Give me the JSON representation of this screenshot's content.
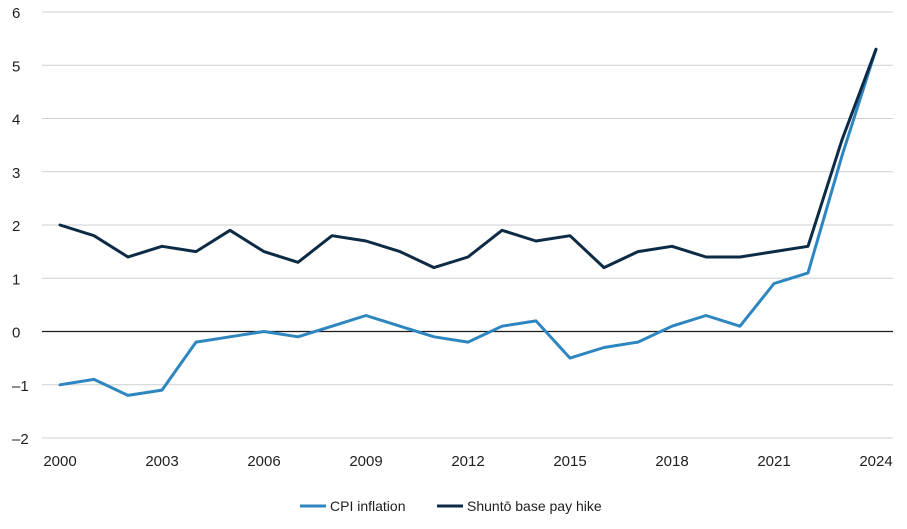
{
  "chart_data": {
    "type": "line",
    "title": "",
    "xlabel": "",
    "ylabel": "",
    "x": [
      2000,
      2001,
      2002,
      2003,
      2004,
      2005,
      2006,
      2007,
      2008,
      2009,
      2010,
      2011,
      2012,
      2013,
      2014,
      2015,
      2016,
      2017,
      2018,
      2019,
      2020,
      2021,
      2022,
      2023,
      2024
    ],
    "ylim": [
      -2,
      6
    ],
    "xlim": [
      2000,
      2024
    ],
    "yticks": [
      -2,
      -1,
      0,
      1,
      2,
      3,
      4,
      5,
      6
    ],
    "ytick_labels": [
      "–2",
      "–1",
      "0",
      "1",
      "2",
      "3",
      "4",
      "5",
      "6"
    ],
    "xticks": [
      "2000",
      "2003",
      "2006",
      "2009",
      "2012",
      "2015",
      "2018",
      "2021",
      "2024"
    ],
    "grid": true,
    "legend_position": "bottom",
    "series": [
      {
        "name": "CPI inflation",
        "color": "#2e86c1",
        "values": [
          -1.0,
          -0.9,
          -1.2,
          -1.1,
          -0.2,
          -0.1,
          0.0,
          -0.1,
          0.1,
          0.3,
          0.1,
          -0.1,
          -0.2,
          0.1,
          0.2,
          -0.5,
          -0.3,
          -0.2,
          0.1,
          0.3,
          0.1,
          0.9,
          1.1,
          3.3,
          5.3
        ]
      },
      {
        "name": "Shuntō base pay hike",
        "color": "#0d2b45",
        "values": [
          2.0,
          1.8,
          1.4,
          1.6,
          1.5,
          1.9,
          1.5,
          1.3,
          1.8,
          1.7,
          1.5,
          1.2,
          1.4,
          1.9,
          1.7,
          1.8,
          1.2,
          1.5,
          1.6,
          1.4,
          1.4,
          1.5,
          1.6,
          3.6,
          5.3
        ]
      }
    ]
  }
}
